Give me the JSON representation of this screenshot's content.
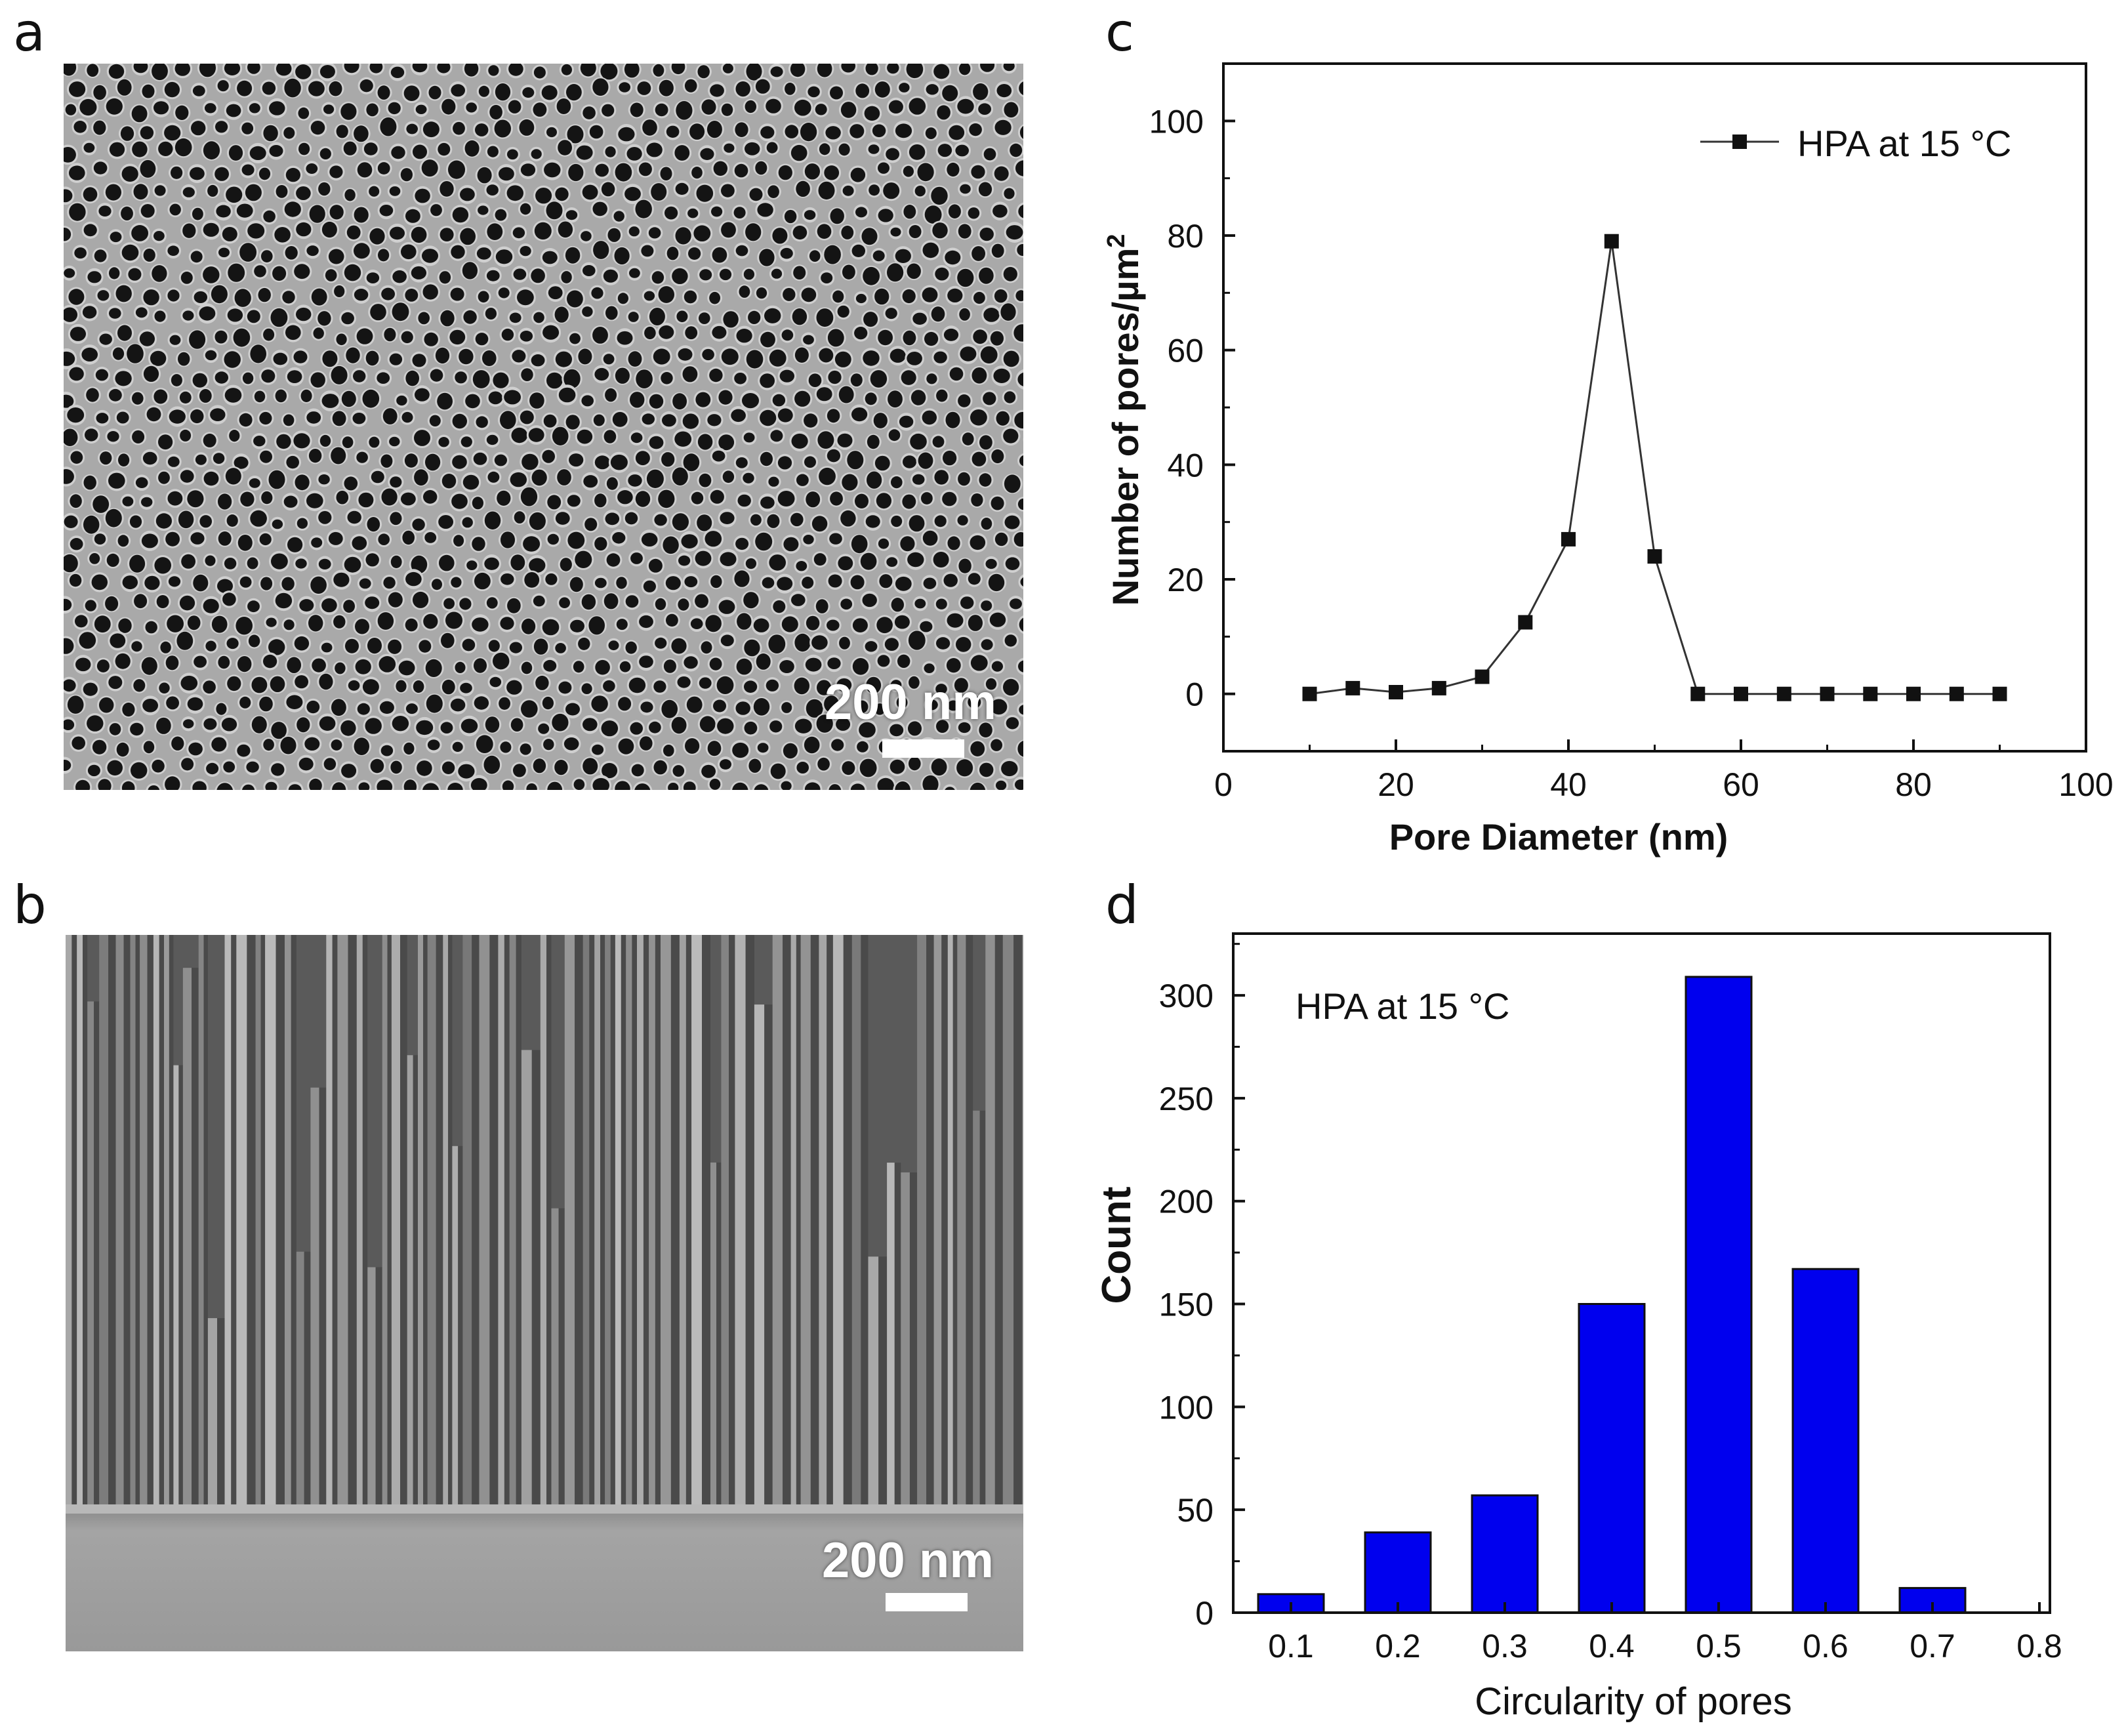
{
  "figure": {
    "panels": [
      {
        "letter": "a",
        "kind": "SEM top view",
        "scale_bar_label": "200 nm"
      },
      {
        "letter": "b",
        "kind": "SEM cross section",
        "scale_bar_label": "200 nm"
      },
      {
        "letter": "c"
      },
      {
        "letter": "d"
      }
    ]
  },
  "chart_data": [
    {
      "type": "line",
      "xlabel": "Pore Diameter (nm)",
      "ylabel_main": "Number of pores/",
      "ylabel_unit": "µm",
      "ylabel_sup": "2",
      "xlim": [
        0,
        100
      ],
      "ylim": [
        -10,
        110
      ],
      "xticks": [
        0,
        20,
        40,
        60,
        80,
        100
      ],
      "yticks": [
        0,
        20,
        40,
        60,
        80,
        100
      ],
      "series": [
        {
          "name": "HPA at 15 °C",
          "marker": "square",
          "x": [
            10,
            15,
            20,
            25,
            30,
            35,
            40,
            45,
            50,
            55,
            60,
            65,
            70,
            75,
            80,
            85,
            90
          ],
          "y": [
            0,
            1,
            0.3,
            1,
            3,
            12.5,
            27,
            79,
            24,
            0,
            0,
            0,
            0,
            0,
            0,
            0,
            0
          ]
        }
      ],
      "legend": {
        "position": "top-right",
        "label": "HPA at 15 °C"
      }
    },
    {
      "type": "bar",
      "xlabel": "Circularity of pores",
      "ylabel": "Count",
      "annotation": "HPA at 15 °C",
      "categories": [
        "0.1",
        "0.2",
        "0.3",
        "0.4",
        "0.5",
        "0.6",
        "0.7",
        "0.8"
      ],
      "values": [
        9,
        39,
        57,
        150,
        309,
        167,
        12,
        0
      ],
      "ylim": [
        0,
        330
      ],
      "yticks": [
        0,
        50,
        100,
        150,
        200,
        250,
        300
      ],
      "bar_color": "#0000ee"
    }
  ]
}
